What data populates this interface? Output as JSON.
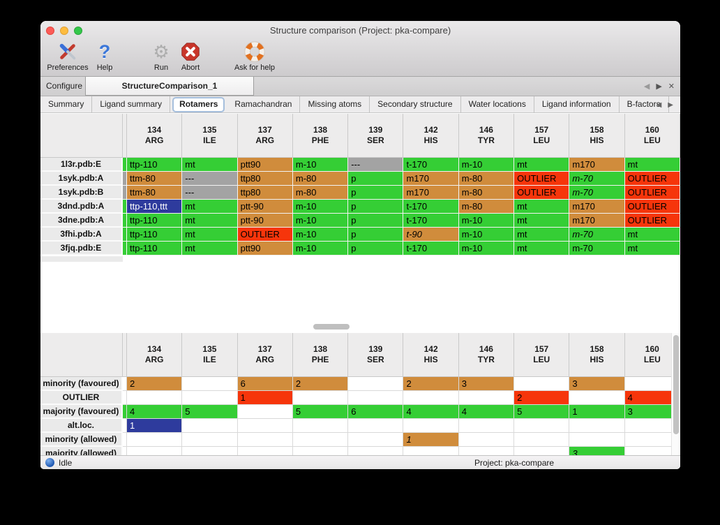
{
  "titlebar": {
    "title": "Structure comparison (Project: pka-compare)"
  },
  "toolbar": {
    "items": [
      {
        "name": "preferences",
        "label": "Preferences"
      },
      {
        "name": "help",
        "label": "Help"
      },
      {
        "name": "run",
        "label": "Run"
      },
      {
        "name": "abort",
        "label": "Abort"
      },
      {
        "name": "ask-for-help",
        "label": "Ask for help"
      }
    ]
  },
  "tabbar": {
    "tabs": [
      {
        "label": "Configure"
      },
      {
        "label": "StructureComparison_1"
      }
    ],
    "nav": {
      "prev": "◀",
      "next": "▶",
      "close": "✕"
    }
  },
  "subtabbar": {
    "tabs": [
      "Summary",
      "Ligand summary",
      "Rotamers",
      "Ramachandran",
      "Missing atoms",
      "Secondary structure",
      "Water locations",
      "Ligand information",
      "B-factors"
    ],
    "active": "Rotamers",
    "nav": {
      "prev": "◀",
      "next": "▶"
    }
  },
  "colors": {
    "f": "#35CE35",
    "m": "#D08C3C",
    "o": "#F6350B",
    "x": "#A3A3A3",
    "a": "#2E3B9D"
  },
  "color_meanings": {
    "f": "favoured",
    "m": "minority",
    "o": "outlier",
    "x": "missing",
    "a": "alt-loc-selected"
  },
  "columns": [
    {
      "num": "134",
      "res": "ARG"
    },
    {
      "num": "135",
      "res": "ILE"
    },
    {
      "num": "137",
      "res": "ARG"
    },
    {
      "num": "138",
      "res": "PHE"
    },
    {
      "num": "139",
      "res": "SER"
    },
    {
      "num": "142",
      "res": "HIS"
    },
    {
      "num": "146",
      "res": "TYR"
    },
    {
      "num": "157",
      "res": "LEU"
    },
    {
      "num": "158",
      "res": "HIS"
    },
    {
      "num": "160",
      "res": "LEU"
    }
  ],
  "structure_table": {
    "rows": [
      {
        "label": "1l3r.pdb:E",
        "strip": "f",
        "cells": [
          {
            "t": "ttp-110",
            "c": "f"
          },
          {
            "t": "mt",
            "c": "f"
          },
          {
            "t": "ptt90",
            "c": "m"
          },
          {
            "t": "m-10",
            "c": "f"
          },
          {
            "t": "---",
            "c": "x"
          },
          {
            "t": "t-170",
            "c": "f"
          },
          {
            "t": "m-10",
            "c": "f"
          },
          {
            "t": "mt",
            "c": "f"
          },
          {
            "t": "m170",
            "c": "m"
          },
          {
            "t": "mt",
            "c": "f"
          }
        ]
      },
      {
        "label": "1syk.pdb:A",
        "strip": "x",
        "cells": [
          {
            "t": "ttm-80",
            "c": "m"
          },
          {
            "t": "---",
            "c": "x"
          },
          {
            "t": "ttp80",
            "c": "m"
          },
          {
            "t": "m-80",
            "c": "m"
          },
          {
            "t": "p",
            "c": "f"
          },
          {
            "t": "m170",
            "c": "m"
          },
          {
            "t": "m-80",
            "c": "m"
          },
          {
            "t": "OUTLIER",
            "c": "o"
          },
          {
            "t": "m-70",
            "c": "f",
            "i": 1
          },
          {
            "t": "OUTLIER",
            "c": "o"
          }
        ]
      },
      {
        "label": "1syk.pdb:B",
        "strip": "x",
        "cells": [
          {
            "t": "ttm-80",
            "c": "m"
          },
          {
            "t": "---",
            "c": "x"
          },
          {
            "t": "ttp80",
            "c": "m"
          },
          {
            "t": "m-80",
            "c": "m"
          },
          {
            "t": "p",
            "c": "f"
          },
          {
            "t": "m170",
            "c": "m"
          },
          {
            "t": "m-80",
            "c": "m"
          },
          {
            "t": "OUTLIER",
            "c": "o"
          },
          {
            "t": "m-70",
            "c": "f",
            "i": 1
          },
          {
            "t": "OUTLIER",
            "c": "o"
          }
        ]
      },
      {
        "label": "3dnd.pdb:A",
        "strip": "f",
        "cells": [
          {
            "t": "ttp-110,ttt",
            "c": "a"
          },
          {
            "t": "mt",
            "c": "f"
          },
          {
            "t": "ptt-90",
            "c": "m"
          },
          {
            "t": "m-10",
            "c": "f"
          },
          {
            "t": "p",
            "c": "f"
          },
          {
            "t": "t-170",
            "c": "f"
          },
          {
            "t": "m-80",
            "c": "m"
          },
          {
            "t": "mt",
            "c": "f"
          },
          {
            "t": "m170",
            "c": "m"
          },
          {
            "t": "OUTLIER",
            "c": "o"
          }
        ]
      },
      {
        "label": "3dne.pdb:A",
        "strip": "f",
        "cells": [
          {
            "t": "ttp-110",
            "c": "f"
          },
          {
            "t": "mt",
            "c": "f"
          },
          {
            "t": "ptt-90",
            "c": "m"
          },
          {
            "t": "m-10",
            "c": "f"
          },
          {
            "t": "p",
            "c": "f"
          },
          {
            "t": "t-170",
            "c": "f"
          },
          {
            "t": "m-10",
            "c": "f"
          },
          {
            "t": "mt",
            "c": "f"
          },
          {
            "t": "m170",
            "c": "m"
          },
          {
            "t": "OUTLIER",
            "c": "o"
          }
        ]
      },
      {
        "label": "3fhi.pdb:A",
        "strip": "f",
        "cells": [
          {
            "t": "ttp-110",
            "c": "f"
          },
          {
            "t": "mt",
            "c": "f"
          },
          {
            "t": "OUTLIER",
            "c": "o"
          },
          {
            "t": "m-10",
            "c": "f"
          },
          {
            "t": "p",
            "c": "f"
          },
          {
            "t": "t-90",
            "c": "m",
            "i": 1
          },
          {
            "t": "m-10",
            "c": "f"
          },
          {
            "t": "mt",
            "c": "f"
          },
          {
            "t": "m-70",
            "c": "f",
            "i": 1
          },
          {
            "t": "mt",
            "c": "f"
          }
        ]
      },
      {
        "label": "3fjq.pdb:E",
        "strip": "f",
        "cells": [
          {
            "t": "ttp-110",
            "c": "f"
          },
          {
            "t": "mt",
            "c": "f"
          },
          {
            "t": "ptt90",
            "c": "m"
          },
          {
            "t": "m-10",
            "c": "f"
          },
          {
            "t": "p",
            "c": "f"
          },
          {
            "t": "t-170",
            "c": "f"
          },
          {
            "t": "m-10",
            "c": "f"
          },
          {
            "t": "mt",
            "c": "f"
          },
          {
            "t": "m-70",
            "c": "f"
          },
          {
            "t": "mt",
            "c": "f"
          }
        ]
      }
    ]
  },
  "count_table": {
    "rows": [
      {
        "label": "minority (favoured)",
        "strip": "",
        "cells": [
          {
            "t": "2",
            "c": "m"
          },
          {},
          {
            "t": "6",
            "c": "m"
          },
          {
            "t": "2",
            "c": "m"
          },
          {},
          {
            "t": "2",
            "c": "m"
          },
          {
            "t": "3",
            "c": "m"
          },
          {},
          {
            "t": "3",
            "c": "m"
          },
          {}
        ]
      },
      {
        "label": "OUTLIER",
        "strip": "",
        "cells": [
          {},
          {},
          {
            "t": "1",
            "c": "o"
          },
          {},
          {},
          {},
          {},
          {
            "t": "2",
            "c": "o"
          },
          {},
          {
            "t": "4",
            "c": "o"
          }
        ]
      },
      {
        "label": "majority (favoured)",
        "strip": "f",
        "cells": [
          {
            "t": "4",
            "c": "f"
          },
          {
            "t": "5",
            "c": "f"
          },
          {},
          {
            "t": "5",
            "c": "f"
          },
          {
            "t": "6",
            "c": "f"
          },
          {
            "t": "4",
            "c": "f"
          },
          {
            "t": "4",
            "c": "f"
          },
          {
            "t": "5",
            "c": "f"
          },
          {
            "t": "1",
            "c": "f"
          },
          {
            "t": "3",
            "c": "f"
          }
        ]
      },
      {
        "label": "alt.loc.",
        "strip": "",
        "cells": [
          {
            "t": "1",
            "c": "a"
          },
          {},
          {},
          {},
          {},
          {},
          {},
          {},
          {},
          {}
        ]
      },
      {
        "label": "minority (allowed)",
        "strip": "",
        "cells": [
          {},
          {},
          {},
          {},
          {},
          {
            "t": "1",
            "c": "m",
            "i": 1
          },
          {},
          {},
          {},
          {}
        ]
      },
      {
        "label": "majority (allowed)",
        "strip": "",
        "cells": [
          {},
          {},
          {},
          {},
          {},
          {},
          {},
          {},
          {
            "t": "3",
            "c": "f",
            "i": 1
          },
          {}
        ]
      }
    ],
    "partial_row": {
      "strip": "x",
      "cells": [
        {},
        {
          "c": "x"
        },
        {},
        {},
        {
          "c": "x"
        },
        {},
        {},
        {},
        {},
        {}
      ]
    }
  },
  "statusbar": {
    "state": "Idle",
    "project": "Project: pka-compare"
  }
}
